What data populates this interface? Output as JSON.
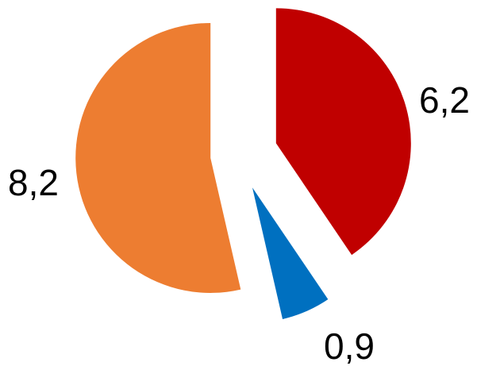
{
  "chart_data": {
    "type": "pie",
    "exploded": true,
    "legend": "none",
    "slices": [
      {
        "value": 6.2,
        "label": "6,2",
        "color": "#C00000"
      },
      {
        "value": 0.9,
        "label": "0,9",
        "color": "#0070C0"
      },
      {
        "value": 8.2,
        "label": "8,2",
        "color": "#ED7D31"
      }
    ]
  }
}
